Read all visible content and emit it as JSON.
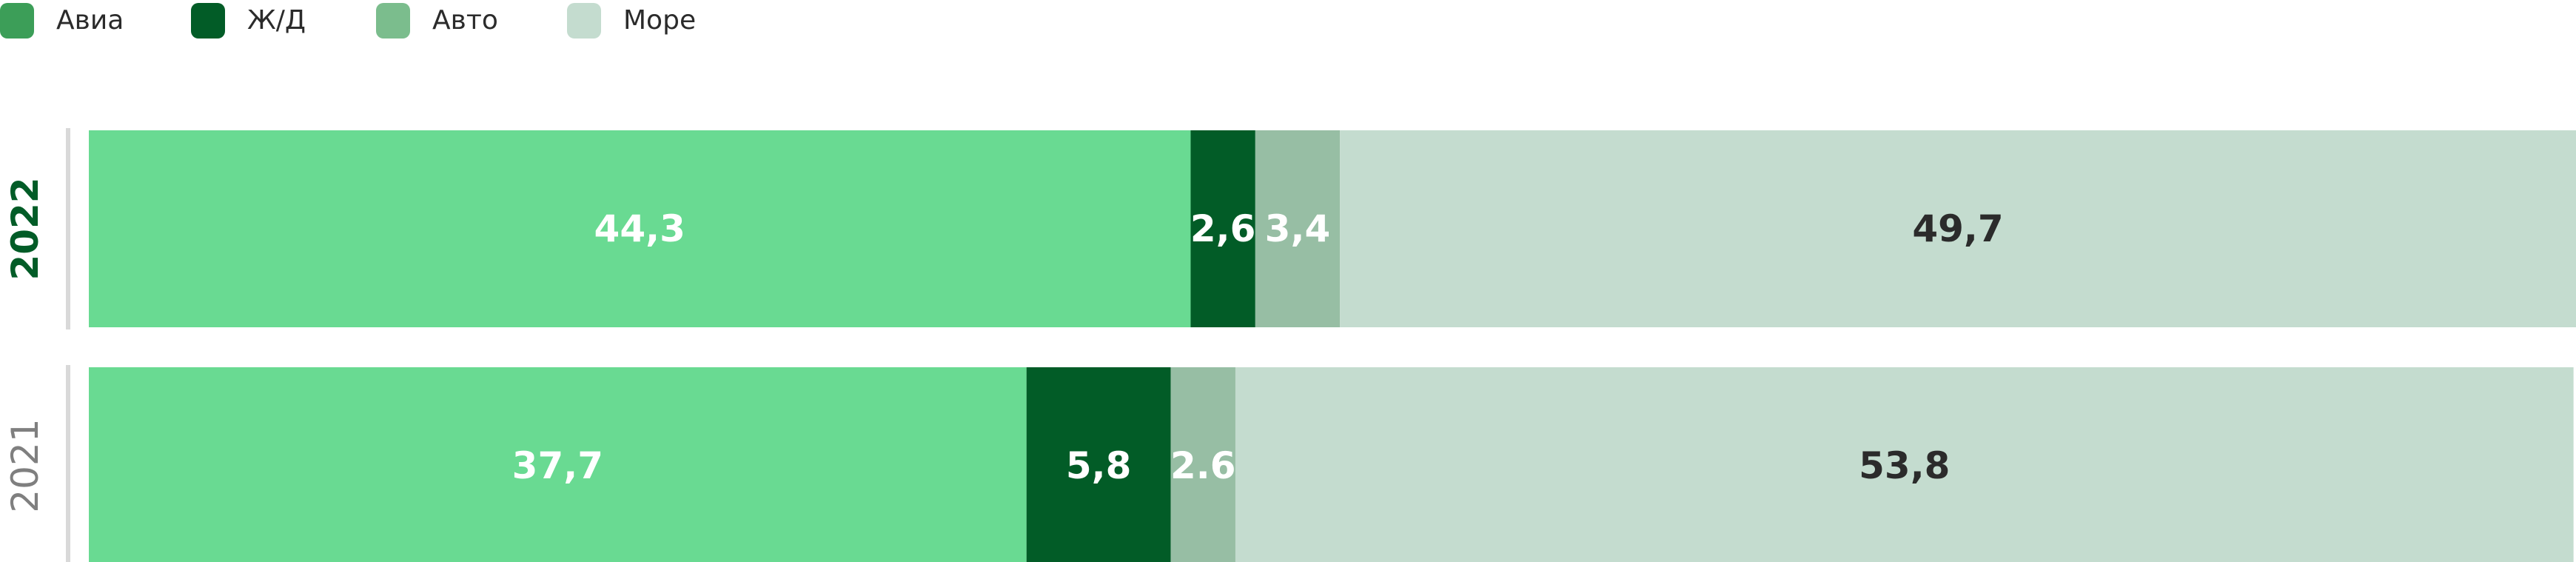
{
  "colors": {
    "avia": "#69da92",
    "rail": "#025c27",
    "auto": "#97bea4",
    "sea": "#c4dccf",
    "legend_avia": "#3c9e58",
    "legend_rail": "#025c27",
    "legend_auto": "#7bbd8d",
    "legend_sea": "#c4dccf",
    "year_current": "#025c27",
    "year_previous": "#7f7f7f",
    "label_light": "#ffffff",
    "label_dark": "#2b2b2b",
    "axis_line": "#d9d9d9"
  },
  "legend": {
    "items": [
      {
        "label": "Авиа",
        "color": "#3c9e58"
      },
      {
        "label": "Ж/Д",
        "color": "#025c27"
      },
      {
        "label": "Авто",
        "color": "#7bbd8d"
      },
      {
        "label": "Море",
        "color": "#c4dccf"
      }
    ]
  },
  "chart_data": {
    "type": "bar",
    "orientation": "horizontal",
    "stacked": true,
    "categories": [
      "2022",
      "2021"
    ],
    "series": [
      {
        "name": "Авиа",
        "values": [
          44.3,
          37.7
        ],
        "labels": [
          "44,3",
          "37,7"
        ]
      },
      {
        "name": "Ж/Д",
        "values": [
          2.6,
          5.8
        ],
        "labels": [
          "2,6",
          "5,8"
        ]
      },
      {
        "name": "Авто",
        "values": [
          3.4,
          2.6
        ],
        "labels": [
          "3,4",
          "2.6"
        ]
      },
      {
        "name": "Море",
        "values": [
          49.7,
          53.8
        ],
        "labels": [
          "49,7",
          "53,8"
        ]
      }
    ],
    "xlim": [
      0,
      100
    ],
    "grid": false,
    "legend_position": "top-left"
  }
}
